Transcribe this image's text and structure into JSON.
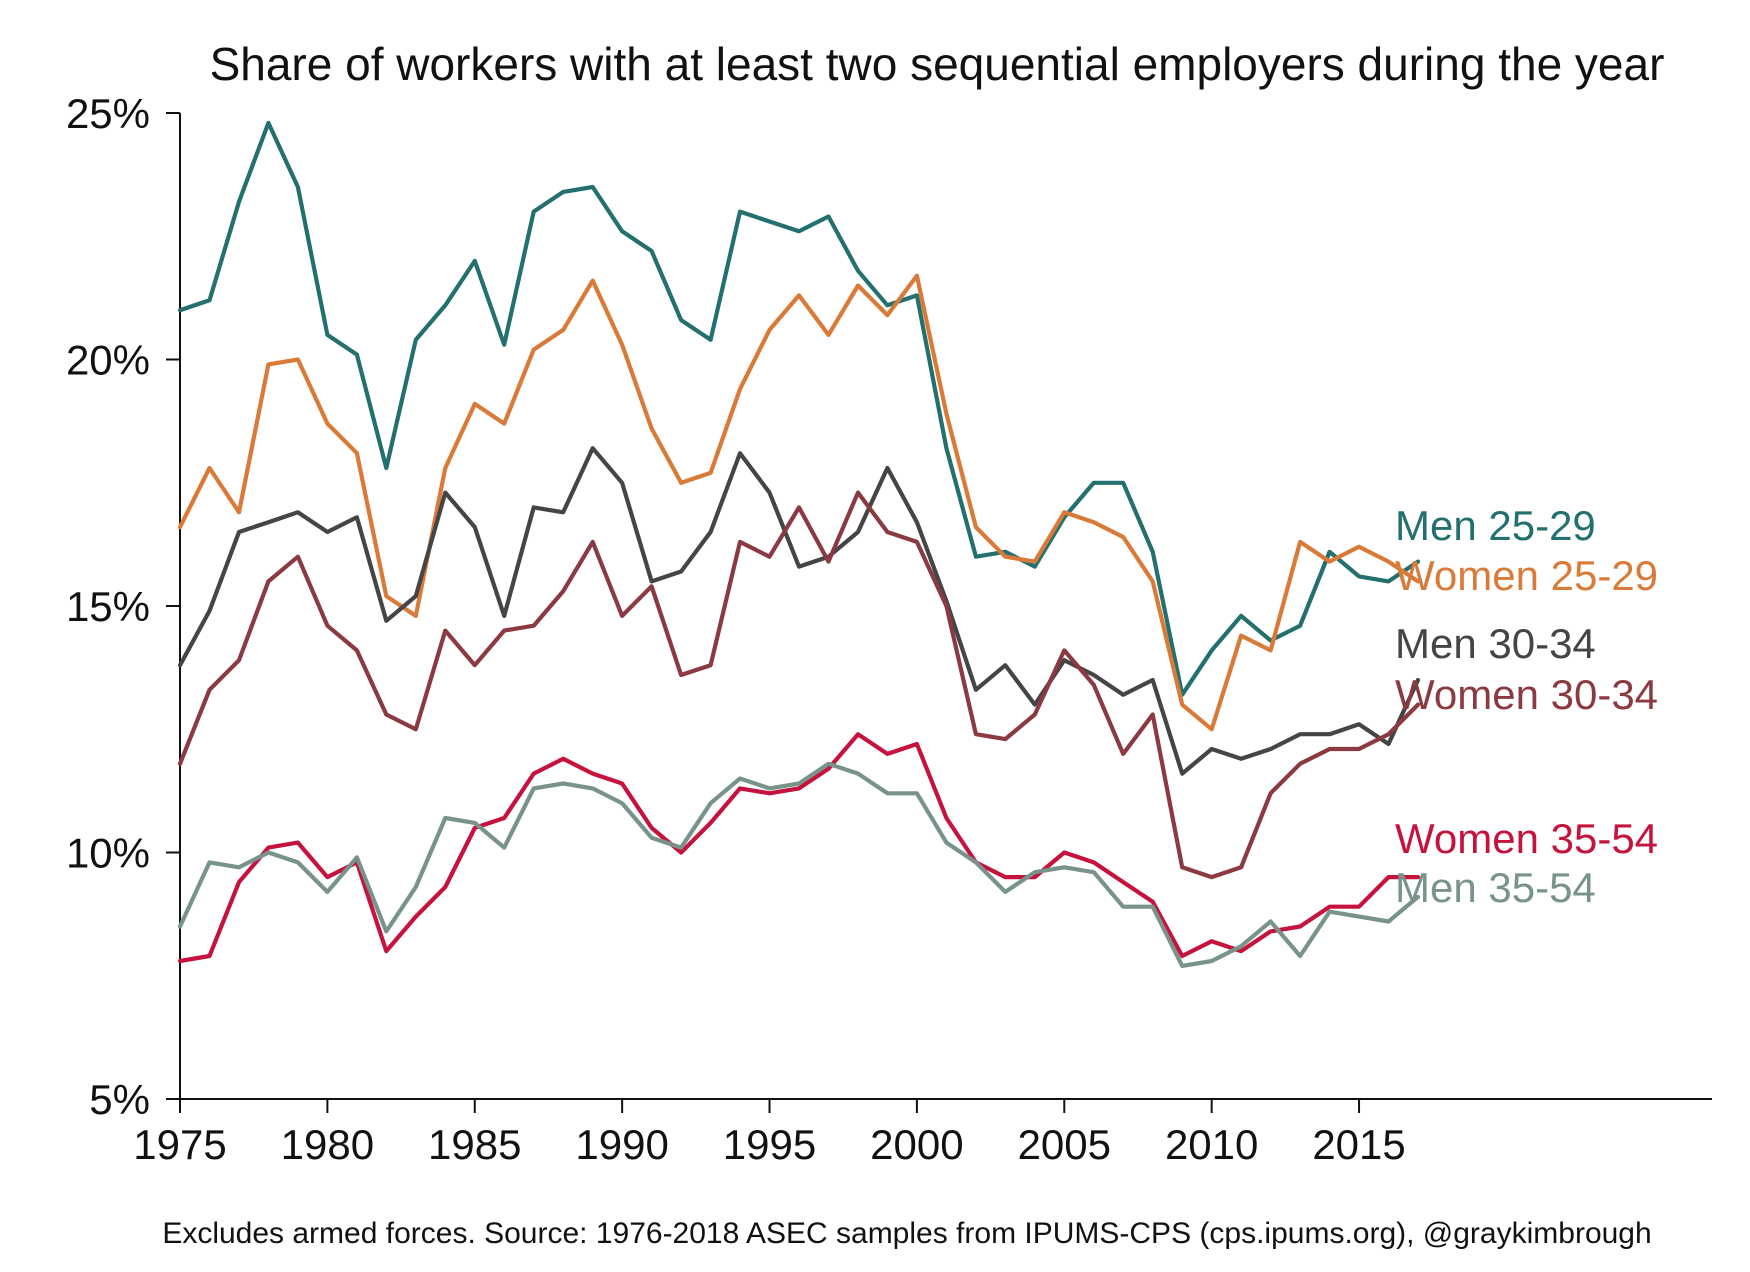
{
  "chart_data": {
    "type": "line",
    "title": "Share of workers with at least two sequential employers during the year",
    "xlabel": "",
    "ylabel": "",
    "x": [
      1975,
      1976,
      1977,
      1978,
      1979,
      1980,
      1981,
      1982,
      1983,
      1984,
      1985,
      1986,
      1987,
      1988,
      1989,
      1990,
      1991,
      1992,
      1993,
      1994,
      1995,
      1996,
      1997,
      1998,
      1999,
      2000,
      2001,
      2002,
      2003,
      2004,
      2005,
      2006,
      2007,
      2008,
      2009,
      2010,
      2011,
      2012,
      2013,
      2014,
      2015,
      2016,
      2017
    ],
    "xlim": [
      1975,
      2028
    ],
    "ylim": [
      5,
      25
    ],
    "x_ticks": [
      {
        "value": 1975,
        "label": "1975"
      },
      {
        "value": 1980,
        "label": "1980"
      },
      {
        "value": 1985,
        "label": "1985"
      },
      {
        "value": 1990,
        "label": "1990"
      },
      {
        "value": 1995,
        "label": "1995"
      },
      {
        "value": 2000,
        "label": "2000"
      },
      {
        "value": 2005,
        "label": "2005"
      },
      {
        "value": 2010,
        "label": "2010"
      },
      {
        "value": 2015,
        "label": "2015"
      }
    ],
    "y_ticks": [
      {
        "value": 5,
        "label": "5%"
      },
      {
        "value": 10,
        "label": "10%"
      },
      {
        "value": 15,
        "label": "15%"
      },
      {
        "value": 20,
        "label": "20%"
      },
      {
        "value": 25,
        "label": "25%"
      }
    ],
    "grid": false,
    "legend": "direct labels at right end of each line",
    "series": [
      {
        "name": "Men 25-29",
        "color": "#23706e",
        "values": [
          21.0,
          21.2,
          23.2,
          24.8,
          23.5,
          20.5,
          20.1,
          17.8,
          20.4,
          21.1,
          22.0,
          20.3,
          23.0,
          23.4,
          23.5,
          22.6,
          22.2,
          20.8,
          20.4,
          23.0,
          22.8,
          22.6,
          22.9,
          21.8,
          21.1,
          21.3,
          18.2,
          16.0,
          16.1,
          15.8,
          16.8,
          17.5,
          17.5,
          16.1,
          13.2,
          14.1,
          14.8,
          14.3,
          14.6,
          16.1,
          15.6,
          15.5,
          15.9
        ]
      },
      {
        "name": "Women 25-29",
        "color": "#d97a38",
        "values": [
          16.6,
          17.8,
          16.9,
          19.9,
          20.0,
          18.7,
          18.1,
          15.2,
          14.8,
          17.8,
          19.1,
          18.7,
          20.2,
          20.6,
          21.6,
          20.3,
          18.6,
          17.5,
          17.7,
          19.4,
          20.6,
          21.3,
          20.5,
          21.5,
          20.9,
          21.7,
          18.9,
          16.6,
          16.0,
          15.9,
          16.9,
          16.7,
          16.4,
          15.5,
          13.0,
          12.5,
          14.4,
          14.1,
          16.3,
          15.9,
          16.2,
          15.9,
          15.5
        ]
      },
      {
        "name": "Men 30-34",
        "color": "#454545",
        "values": [
          13.8,
          14.9,
          16.5,
          16.7,
          16.9,
          16.5,
          16.8,
          14.7,
          15.2,
          17.3,
          16.6,
          14.8,
          17.0,
          16.9,
          18.2,
          17.5,
          15.5,
          15.7,
          16.5,
          18.1,
          17.3,
          15.8,
          16.0,
          16.5,
          17.8,
          16.7,
          15.1,
          13.3,
          13.8,
          13.0,
          13.9,
          13.6,
          13.2,
          13.5,
          11.6,
          12.1,
          11.9,
          12.1,
          12.4,
          12.4,
          12.6,
          12.2,
          13.5
        ]
      },
      {
        "name": "Women 30-34",
        "color": "#8b3a41",
        "values": [
          11.8,
          13.3,
          13.9,
          15.5,
          16.0,
          14.6,
          14.1,
          12.8,
          12.5,
          14.5,
          13.8,
          14.5,
          14.6,
          15.3,
          16.3,
          14.8,
          15.4,
          13.6,
          13.8,
          16.3,
          16.0,
          17.0,
          15.9,
          17.3,
          16.5,
          16.3,
          15.0,
          12.4,
          12.3,
          12.8,
          14.1,
          13.4,
          12.0,
          12.8,
          9.7,
          9.5,
          9.7,
          11.2,
          11.8,
          12.1,
          12.1,
          12.4,
          13.0
        ]
      },
      {
        "name": "Women 35-54",
        "color": "#c5133e",
        "values": [
          7.8,
          7.9,
          9.4,
          10.1,
          10.2,
          9.5,
          9.8,
          8.0,
          8.7,
          9.3,
          10.5,
          10.7,
          11.6,
          11.9,
          11.6,
          11.4,
          10.5,
          10.0,
          10.6,
          11.3,
          11.2,
          11.3,
          11.7,
          12.4,
          12.0,
          12.2,
          10.7,
          9.8,
          9.5,
          9.5,
          10.0,
          9.8,
          9.4,
          9.0,
          7.9,
          8.2,
          8.0,
          8.4,
          8.5,
          8.9,
          8.9,
          9.5,
          9.5
        ]
      },
      {
        "name": "Men 35-54",
        "color": "#78938a",
        "values": [
          8.5,
          9.8,
          9.7,
          10.0,
          9.8,
          9.2,
          9.9,
          8.4,
          9.3,
          10.7,
          10.6,
          10.1,
          11.3,
          11.4,
          11.3,
          11.0,
          10.3,
          10.1,
          11.0,
          11.5,
          11.3,
          11.4,
          11.8,
          11.6,
          11.2,
          11.2,
          10.2,
          9.8,
          9.2,
          9.6,
          9.7,
          9.6,
          8.9,
          8.9,
          7.7,
          7.8,
          8.1,
          8.6,
          7.9,
          8.8,
          8.7,
          8.6,
          9.1
        ]
      }
    ],
    "note": "Excludes armed forces. Source: 1976-2018 ASEC samples from IPUMS-CPS (cps.ipums.org), @graykimbrough"
  }
}
